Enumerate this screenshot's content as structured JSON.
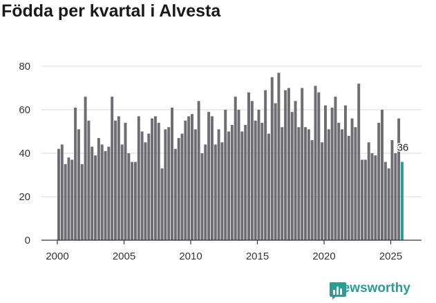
{
  "chart_data": {
    "type": "bar",
    "title": "Födda per kvartal i Alvesta",
    "xlabel": "",
    "ylabel": "",
    "ylim": [
      0,
      80
    ],
    "yticks": [
      0,
      20,
      40,
      60,
      80
    ],
    "xticks": [
      2000,
      2005,
      2010,
      2015,
      2020,
      2025
    ],
    "start_year": 2000,
    "quarters_per_year": 4,
    "values": [
      42,
      44,
      35,
      38,
      37,
      61,
      51,
      35,
      66,
      55,
      43,
      39,
      47,
      44,
      41,
      43,
      66,
      55,
      57,
      44,
      54,
      40,
      36,
      36,
      57,
      50,
      45,
      49,
      56,
      57,
      54,
      33,
      51,
      52,
      61,
      42,
      47,
      49,
      55,
      57,
      58,
      51,
      64,
      40,
      44,
      59,
      57,
      44,
      51,
      45,
      60,
      50,
      53,
      66,
      60,
      50,
      53,
      68,
      64,
      55,
      60,
      54,
      69,
      49,
      75,
      63,
      77,
      52,
      69,
      70,
      59,
      64,
      52,
      70,
      52,
      51,
      46,
      71,
      68,
      45,
      62,
      51,
      61,
      66,
      54,
      51,
      62,
      48,
      56,
      52,
      72,
      37,
      37,
      45,
      40,
      39,
      54,
      60,
      36,
      33,
      46,
      40,
      56,
      36
    ],
    "highlight_label": "36",
    "bar_color": "#6d6d72",
    "highlight_color": "#2a9d94",
    "grid": true
  },
  "brand": {
    "name": "Newsworthy",
    "color": "#2a9d94"
  }
}
